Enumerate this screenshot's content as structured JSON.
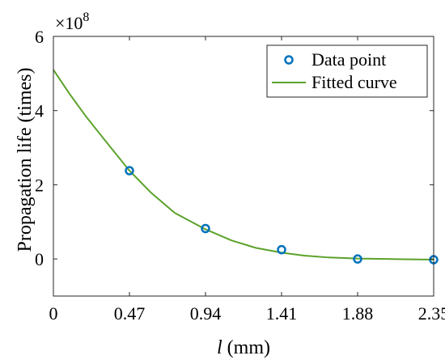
{
  "chart_data": {
    "type": "scatter",
    "title": "",
    "xlabel_var": "l",
    "xlabel_unit": " (mm)",
    "ylabel": "Propagation life (times)",
    "y_multiplier_base": "×10",
    "y_multiplier_exp": "8",
    "xlim": [
      0,
      2.35
    ],
    "ylim": [
      -1,
      6
    ],
    "x_ticks": [
      0,
      0.47,
      0.94,
      1.41,
      1.88,
      2.35
    ],
    "x_tick_labels": [
      "0",
      "0.47",
      "0.94",
      "1.41",
      "1.88",
      "2.35"
    ],
    "y_ticks": [
      0,
      2,
      4,
      6
    ],
    "y_tick_labels": [
      "0",
      "2",
      "4",
      "6"
    ],
    "grid": false,
    "legend_position": "top-right",
    "series": [
      {
        "name": "Data point",
        "kind": "scatter",
        "color": "#0072BD",
        "x": [
          0.47,
          0.94,
          1.41,
          1.88,
          2.35
        ],
        "y": [
          2.38,
          0.82,
          0.25,
          0.0,
          -0.02
        ]
      },
      {
        "name": "Fitted curve",
        "kind": "line",
        "color": "#5BA22A",
        "x": [
          0,
          0.1,
          0.2,
          0.3,
          0.47,
          0.6,
          0.75,
          0.94,
          1.1,
          1.25,
          1.41,
          1.55,
          1.7,
          1.88,
          2.05,
          2.2,
          2.35
        ],
        "y": [
          5.1,
          4.45,
          3.85,
          3.3,
          2.38,
          1.8,
          1.24,
          0.8,
          0.5,
          0.3,
          0.17,
          0.09,
          0.04,
          0.01,
          0.0,
          -0.01,
          -0.02
        ]
      }
    ]
  }
}
